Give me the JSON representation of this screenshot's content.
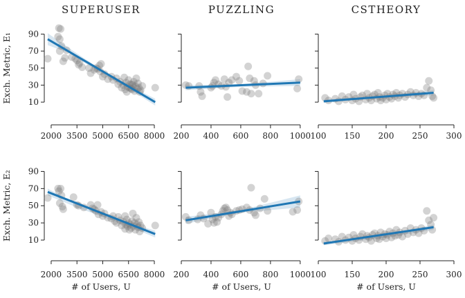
{
  "chart_data": [
    {
      "type": "scatter",
      "title": "SUPERUSER",
      "row": 0,
      "col": 0,
      "ylabel": "Exch. Metric, E₁",
      "xlabel": "",
      "xlim": [
        1600,
        8200
      ],
      "ylim": [
        6,
        96
      ],
      "xticks": [
        2000,
        3500,
        5000,
        6500,
        8000
      ],
      "yticks": [
        10,
        30,
        50,
        70,
        90
      ],
      "fit": {
        "x": [
          1800,
          8050
        ],
        "y": [
          84,
          10
        ]
      },
      "band": {
        "x": [
          1800,
          3000,
          5000,
          6500,
          8050
        ],
        "lo": [
          77,
          68,
          43,
          26,
          6
        ],
        "hi": [
          91,
          74,
          47,
          30,
          14
        ]
      },
      "points": [
        [
          1800,
          61
        ],
        [
          2450,
          97
        ],
        [
          2550,
          96
        ],
        [
          2400,
          87
        ],
        [
          2500,
          84
        ],
        [
          2600,
          76
        ],
        [
          2500,
          70
        ],
        [
          2900,
          71
        ],
        [
          2800,
          62
        ],
        [
          2700,
          58
        ],
        [
          3200,
          63
        ],
        [
          3400,
          61
        ],
        [
          3500,
          59
        ],
        [
          3650,
          56
        ],
        [
          3600,
          54
        ],
        [
          3800,
          51
        ],
        [
          4200,
          50
        ],
        [
          4300,
          44
        ],
        [
          4500,
          48
        ],
        [
          4600,
          50
        ],
        [
          4700,
          49
        ],
        [
          4800,
          53
        ],
        [
          4900,
          55
        ],
        [
          4850,
          46
        ],
        [
          5000,
          40
        ],
        [
          5100,
          43
        ],
        [
          5300,
          37
        ],
        [
          5500,
          40
        ],
        [
          5600,
          36
        ],
        [
          5800,
          38
        ],
        [
          5900,
          31
        ],
        [
          6000,
          34
        ],
        [
          6100,
          27
        ],
        [
          6200,
          30
        ],
        [
          6300,
          25
        ],
        [
          6350,
          33
        ],
        [
          6400,
          22
        ],
        [
          6450,
          28
        ],
        [
          6500,
          36
        ],
        [
          6550,
          27
        ],
        [
          6600,
          31
        ],
        [
          6650,
          26
        ],
        [
          6700,
          25
        ],
        [
          6750,
          30
        ],
        [
          6800,
          34
        ],
        [
          6850,
          23
        ],
        [
          6900,
          29
        ],
        [
          6950,
          38
        ],
        [
          7000,
          26
        ],
        [
          7050,
          32
        ],
        [
          7100,
          27
        ],
        [
          7150,
          22
        ],
        [
          7200,
          24
        ],
        [
          7300,
          29
        ],
        [
          8050,
          27
        ],
        [
          6250,
          39
        ],
        [
          6700,
          31
        ]
      ]
    },
    {
      "type": "scatter",
      "title": "PUZZLING",
      "row": 0,
      "col": 1,
      "ylabel": "",
      "xlabel": "",
      "xlim": [
        200,
        1010
      ],
      "ylim": [
        6,
        96
      ],
      "xticks": [
        200,
        400,
        600,
        800,
        1000
      ],
      "yticks": [
        10,
        30,
        50,
        70,
        90
      ],
      "fit": {
        "x": [
          230,
          1000
        ],
        "y": [
          27,
          33
        ]
      },
      "band": {
        "x": [
          230,
          600,
          1000
        ],
        "lo": [
          24,
          28,
          29
        ],
        "hi": [
          30,
          31,
          37
        ]
      },
      "points": [
        [
          230,
          30
        ],
        [
          250,
          29
        ],
        [
          320,
          29
        ],
        [
          330,
          22
        ],
        [
          340,
          17
        ],
        [
          400,
          27
        ],
        [
          410,
          29
        ],
        [
          420,
          33
        ],
        [
          430,
          36
        ],
        [
          450,
          31
        ],
        [
          470,
          29
        ],
        [
          490,
          37
        ],
        [
          500,
          28
        ],
        [
          510,
          16
        ],
        [
          520,
          33
        ],
        [
          540,
          36
        ],
        [
          570,
          40
        ],
        [
          590,
          35
        ],
        [
          610,
          23
        ],
        [
          640,
          22
        ],
        [
          650,
          52
        ],
        [
          660,
          38
        ],
        [
          670,
          20
        ],
        [
          690,
          35
        ],
        [
          700,
          30
        ],
        [
          720,
          20
        ],
        [
          750,
          32
        ],
        [
          780,
          41
        ],
        [
          980,
          26
        ],
        [
          990,
          37
        ]
      ]
    },
    {
      "type": "scatter",
      "title": "CSTHEORY",
      "row": 0,
      "col": 2,
      "ylabel": "",
      "xlabel": "",
      "xlim": [
        100,
        300
      ],
      "ylim": [
        6,
        96
      ],
      "xticks": [
        100,
        150,
        200,
        250,
        300
      ],
      "yticks": [
        10,
        30,
        50,
        70,
        90
      ],
      "fit": {
        "x": [
          108,
          270
        ],
        "y": [
          11,
          21
        ]
      },
      "band": {
        "x": [
          108,
          190,
          270
        ],
        "lo": [
          9,
          15,
          18
        ],
        "hi": [
          13,
          17,
          24
        ]
      },
      "points": [
        [
          110,
          15
        ],
        [
          115,
          12
        ],
        [
          125,
          14
        ],
        [
          130,
          11
        ],
        [
          135,
          17
        ],
        [
          140,
          13
        ],
        [
          145,
          16
        ],
        [
          150,
          12
        ],
        [
          152,
          19
        ],
        [
          155,
          14
        ],
        [
          160,
          11
        ],
        [
          162,
          16
        ],
        [
          165,
          18
        ],
        [
          170,
          13
        ],
        [
          172,
          20
        ],
        [
          175,
          15
        ],
        [
          178,
          12
        ],
        [
          180,
          17
        ],
        [
          183,
          19
        ],
        [
          186,
          14
        ],
        [
          188,
          21
        ],
        [
          190,
          16
        ],
        [
          192,
          12
        ],
        [
          195,
          15
        ],
        [
          198,
          18
        ],
        [
          200,
          13
        ],
        [
          202,
          20
        ],
        [
          205,
          16
        ],
        [
          208,
          14
        ],
        [
          210,
          19
        ],
        [
          213,
          17
        ],
        [
          215,
          21
        ],
        [
          218,
          15
        ],
        [
          220,
          18
        ],
        [
          224,
          20
        ],
        [
          228,
          16
        ],
        [
          232,
          19
        ],
        [
          236,
          22
        ],
        [
          240,
          18
        ],
        [
          244,
          21
        ],
        [
          248,
          17
        ],
        [
          252,
          20
        ],
        [
          256,
          18
        ],
        [
          260,
          27
        ],
        [
          263,
          35
        ],
        [
          266,
          24
        ],
        [
          268,
          17
        ],
        [
          270,
          15
        ]
      ]
    },
    {
      "type": "scatter",
      "title": "",
      "row": 1,
      "col": 0,
      "ylabel": "Exch. Metric, E₂",
      "xlabel": "# of Users, U",
      "xlim": [
        1600,
        8200
      ],
      "ylim": [
        6,
        96
      ],
      "xticks": [
        2000,
        3500,
        5000,
        6500,
        8000
      ],
      "yticks": [
        10,
        30,
        50,
        70,
        90
      ],
      "fit": {
        "x": [
          1800,
          8050
        ],
        "y": [
          66,
          17
        ]
      },
      "band": {
        "x": [
          1800,
          3500,
          5000,
          6500,
          8050
        ],
        "lo": [
          62,
          48,
          37,
          26,
          13
        ],
        "hi": [
          70,
          52,
          41,
          30,
          21
        ]
      },
      "points": [
        [
          1800,
          59
        ],
        [
          2400,
          70
        ],
        [
          2550,
          70
        ],
        [
          2450,
          67
        ],
        [
          2600,
          62
        ],
        [
          2500,
          53
        ],
        [
          2650,
          49
        ],
        [
          2700,
          46
        ],
        [
          3300,
          60
        ],
        [
          3500,
          51
        ],
        [
          3600,
          50
        ],
        [
          3900,
          48
        ],
        [
          4300,
          51
        ],
        [
          4400,
          47
        ],
        [
          4500,
          46
        ],
        [
          4600,
          44
        ],
        [
          4700,
          51
        ],
        [
          4750,
          40
        ],
        [
          4900,
          43
        ],
        [
          5000,
          38
        ],
        [
          5100,
          41
        ],
        [
          5300,
          36
        ],
        [
          5500,
          35
        ],
        [
          5600,
          38
        ],
        [
          5700,
          32
        ],
        [
          5800,
          30
        ],
        [
          5900,
          37
        ],
        [
          6000,
          33
        ],
        [
          6100,
          27
        ],
        [
          6200,
          31
        ],
        [
          6300,
          23
        ],
        [
          6350,
          28
        ],
        [
          6400,
          34
        ],
        [
          6450,
          26
        ],
        [
          6500,
          30
        ],
        [
          6550,
          22
        ],
        [
          6600,
          28
        ],
        [
          6650,
          24
        ],
        [
          6700,
          32
        ],
        [
          6750,
          41
        ],
        [
          6800,
          26
        ],
        [
          6850,
          30
        ],
        [
          6900,
          22
        ],
        [
          6950,
          36
        ],
        [
          7000,
          28
        ],
        [
          7050,
          25
        ],
        [
          7100,
          31
        ],
        [
          7150,
          20
        ],
        [
          7200,
          27
        ],
        [
          7300,
          24
        ],
        [
          8050,
          27
        ],
        [
          6300,
          38
        ]
      ]
    },
    {
      "type": "scatter",
      "title": "",
      "row": 1,
      "col": 1,
      "ylabel": "",
      "xlabel": "# of Users, U",
      "xlim": [
        200,
        1010
      ],
      "ylim": [
        6,
        96
      ],
      "xticks": [
        200,
        400,
        600,
        800,
        1000
      ],
      "yticks": [
        10,
        30,
        50,
        70,
        90
      ],
      "fit": {
        "x": [
          230,
          1000
        ],
        "y": [
          33,
          55
        ]
      },
      "band": {
        "x": [
          230,
          600,
          1000
        ],
        "lo": [
          29,
          42,
          48
        ],
        "hi": [
          37,
          45,
          62
        ]
      },
      "points": [
        [
          230,
          37
        ],
        [
          250,
          33
        ],
        [
          310,
          34
        ],
        [
          330,
          39
        ],
        [
          350,
          35
        ],
        [
          380,
          29
        ],
        [
          400,
          42
        ],
        [
          410,
          34
        ],
        [
          420,
          30
        ],
        [
          430,
          37
        ],
        [
          440,
          31
        ],
        [
          450,
          36
        ],
        [
          470,
          40
        ],
        [
          480,
          44
        ],
        [
          490,
          47
        ],
        [
          500,
          48
        ],
        [
          510,
          45
        ],
        [
          520,
          38
        ],
        [
          530,
          42
        ],
        [
          540,
          40
        ],
        [
          570,
          44
        ],
        [
          590,
          45
        ],
        [
          610,
          46
        ],
        [
          640,
          48
        ],
        [
          660,
          45
        ],
        [
          670,
          71
        ],
        [
          690,
          42
        ],
        [
          700,
          39
        ],
        [
          730,
          47
        ],
        [
          760,
          58
        ],
        [
          780,
          44
        ],
        [
          950,
          43
        ],
        [
          980,
          45
        ],
        [
          990,
          55
        ]
      ]
    },
    {
      "type": "scatter",
      "title": "",
      "row": 1,
      "col": 2,
      "ylabel": "",
      "xlabel": "# of Users, U",
      "xlim": [
        100,
        300
      ],
      "ylim": [
        6,
        96
      ],
      "xticks": [
        100,
        150,
        200,
        250,
        300
      ],
      "yticks": [
        10,
        30,
        50,
        70,
        90
      ],
      "fit": {
        "x": [
          108,
          270
        ],
        "y": [
          6,
          25
        ]
      },
      "band": {
        "x": [
          108,
          190,
          270
        ],
        "lo": [
          4,
          12,
          22
        ],
        "hi": [
          8,
          14,
          28
        ]
      },
      "points": [
        [
          110,
          9
        ],
        [
          115,
          12
        ],
        [
          125,
          11
        ],
        [
          130,
          8
        ],
        [
          135,
          14
        ],
        [
          140,
          10
        ],
        [
          145,
          13
        ],
        [
          150,
          9
        ],
        [
          152,
          16
        ],
        [
          155,
          12
        ],
        [
          160,
          10
        ],
        [
          162,
          14
        ],
        [
          165,
          17
        ],
        [
          170,
          11
        ],
        [
          172,
          15
        ],
        [
          175,
          13
        ],
        [
          178,
          9
        ],
        [
          180,
          16
        ],
        [
          183,
          18
        ],
        [
          186,
          12
        ],
        [
          188,
          15
        ],
        [
          190,
          11
        ],
        [
          192,
          19
        ],
        [
          195,
          14
        ],
        [
          198,
          17
        ],
        [
          200,
          12
        ],
        [
          202,
          16
        ],
        [
          205,
          20
        ],
        [
          208,
          13
        ],
        [
          210,
          18
        ],
        [
          213,
          15
        ],
        [
          215,
          22
        ],
        [
          218,
          16
        ],
        [
          220,
          19
        ],
        [
          224,
          14
        ],
        [
          228,
          21
        ],
        [
          232,
          17
        ],
        [
          236,
          24
        ],
        [
          240,
          19
        ],
        [
          244,
          22
        ],
        [
          248,
          18
        ],
        [
          252,
          24
        ],
        [
          256,
          21
        ],
        [
          260,
          44
        ],
        [
          263,
          33
        ],
        [
          266,
          28
        ],
        [
          268,
          22
        ],
        [
          270,
          36
        ]
      ]
    }
  ]
}
